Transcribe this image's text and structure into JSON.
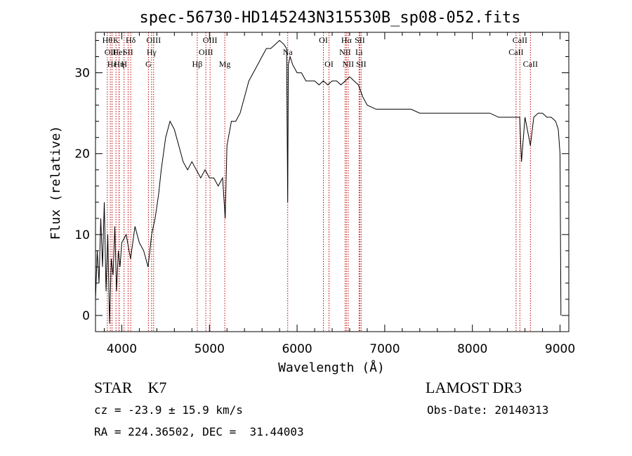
{
  "chart_data": {
    "type": "line",
    "title": "spec-56730-HD145243N315530B_sp08-052.fits",
    "xlabel": "Wavelength (Å)",
    "ylabel": "Flux (relative)",
    "xlim": [
      3700,
      9100
    ],
    "ylim": [
      -2,
      35
    ],
    "xticks": [
      4000,
      5000,
      6000,
      7000,
      8000,
      9000
    ],
    "yticks": [
      0,
      10,
      20,
      30
    ],
    "grid": false,
    "series": [
      {
        "x": [
          3700,
          3720,
          3740,
          3760,
          3780,
          3800,
          3820,
          3840,
          3860,
          3880,
          3900,
          3920,
          3940,
          3960,
          3980,
          4000,
          4050,
          4100,
          4150,
          4200,
          4250,
          4300,
          4340,
          4380,
          4420,
          4450,
          4500,
          4550,
          4600,
          4650,
          4700,
          4750,
          4800,
          4850,
          4900,
          4950,
          5000,
          5050,
          5100,
          5150,
          5180,
          5200,
          5250,
          5300,
          5350,
          5400,
          5450,
          5500,
          5550,
          5600,
          5650,
          5700,
          5750,
          5800,
          5850,
          5880,
          5893,
          5900,
          5920,
          5950,
          6000,
          6050,
          6100,
          6150,
          6200,
          6250,
          6300,
          6350,
          6400,
          6450,
          6500,
          6550,
          6600,
          6650,
          6700,
          6750,
          6800,
          6900,
          7000,
          7100,
          7200,
          7300,
          7400,
          7500,
          7600,
          7700,
          7800,
          7900,
          8000,
          8100,
          8200,
          8300,
          8400,
          8450,
          8500,
          8540,
          8560,
          8600,
          8662,
          8700,
          8750,
          8800,
          8850,
          8900,
          8950,
          8980,
          9000,
          9010
        ],
        "y": [
          2,
          8,
          4,
          12,
          6,
          14,
          3,
          10,
          -1,
          7,
          5,
          11,
          3,
          8,
          6,
          9,
          10,
          7,
          11,
          9,
          8,
          6,
          10,
          12,
          15,
          18,
          22,
          24,
          23,
          21,
          19,
          18,
          19,
          18,
          17,
          18,
          17,
          17,
          16,
          17,
          12,
          21,
          24,
          24,
          25,
          27,
          29,
          30,
          31,
          32,
          33,
          33,
          33.5,
          34,
          33.5,
          33,
          14,
          31,
          32,
          31,
          30,
          30,
          29,
          29,
          29,
          28.5,
          29,
          28.5,
          29,
          29,
          28.5,
          29,
          29.5,
          29,
          28.5,
          27,
          26,
          25.5,
          25.5,
          25.5,
          25.5,
          25.5,
          25,
          25,
          25,
          25,
          25,
          25,
          25,
          25,
          25,
          24.5,
          24.5,
          24.5,
          24.5,
          24.5,
          19,
          24.5,
          21,
          24.5,
          25,
          25,
          24.5,
          24.5,
          24,
          23,
          20,
          0
        ]
      }
    ],
    "line_markers": [
      {
        "w": 3835,
        "label": "Hθ",
        "row": 0
      },
      {
        "w": 3869,
        "label": "OII",
        "row": 1
      },
      {
        "w": 3889,
        "label": "Hε",
        "row": 2
      },
      {
        "w": 3934,
        "label": "K",
        "row": 0
      },
      {
        "w": 3968,
        "label": "HeI",
        "row": 1
      },
      {
        "w": 3970,
        "label": "Hη",
        "row": 2
      },
      {
        "w": 4026,
        "label": "H",
        "row": 2
      },
      {
        "w": 4072,
        "label": "SII",
        "row": 1
      },
      {
        "w": 4102,
        "label": "Hδ",
        "row": 0
      },
      {
        "w": 4304,
        "label": "G",
        "row": 2
      },
      {
        "w": 4340,
        "label": "Hγ",
        "row": 1
      },
      {
        "w": 4363,
        "label": "OIII",
        "row": 0
      },
      {
        "w": 4861,
        "label": "Hβ",
        "row": 2
      },
      {
        "w": 4959,
        "label": "OIII",
        "row": 1
      },
      {
        "w": 5007,
        "label": "OIII",
        "row": 0
      },
      {
        "w": 5175,
        "label": "Mg",
        "row": 2
      },
      {
        "w": 5893,
        "label": "Na",
        "row": 1
      },
      {
        "w": 6300,
        "label": "OI",
        "row": 0
      },
      {
        "w": 6364,
        "label": "OI",
        "row": 2
      },
      {
        "w": 6548,
        "label": "NII",
        "row": 1
      },
      {
        "w": 6563,
        "label": "Hα",
        "row": 0
      },
      {
        "w": 6583,
        "label": "NII",
        "row": 2
      },
      {
        "w": 6707,
        "label": "Li",
        "row": 1
      },
      {
        "w": 6716,
        "label": "SII",
        "row": 0
      },
      {
        "w": 6731,
        "label": "SII",
        "row": 2
      },
      {
        "w": 8498,
        "label": "CaII",
        "row": 1
      },
      {
        "w": 8542,
        "label": "CaII",
        "row": 0
      },
      {
        "w": 8662,
        "label": "CaII",
        "row": 2
      }
    ]
  },
  "info": {
    "class_text": "STAR    K7",
    "survey": "LAMOST DR3",
    "cz": "cz = -23.9 ± 15.9 km/s",
    "obs_date": "Obs-Date: 20140313",
    "radec": "RA = 224.36502, DEC =  31.44003"
  },
  "colors": {
    "spectrum": "#000000",
    "marker_line": "#c00000",
    "axes": "#000000"
  }
}
